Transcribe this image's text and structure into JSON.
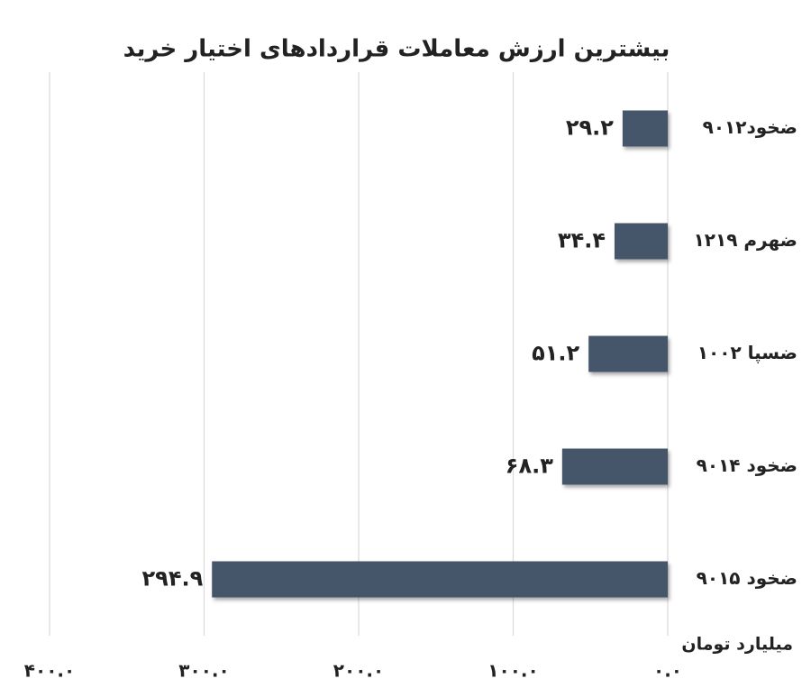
{
  "chart_data": {
    "type": "hbar",
    "title": "بیشترین ارزش معاملات قراردادهای اختیار خرید",
    "x_label": "میلیارد تومان",
    "categories": [
      "ضخود۹۰۱۲",
      "ضهرم ۱۲۱۹",
      "ضسپا ۱۰۰۲",
      "ضخود ۹۰۱۴",
      "ضخود ۹۰۱۵"
    ],
    "values": [
      29.2,
      34.4,
      51.2,
      68.3,
      294.9
    ],
    "value_labels": [
      "۲۹.۲",
      "۳۴.۴",
      "۵۱.۲",
      "۶۸.۳",
      "۲۹۴.۹"
    ],
    "color": "#44546a",
    "xlim": [
      0,
      400
    ],
    "xticks": [
      {
        "value": 0,
        "label": "۰.۰"
      },
      {
        "value": 100,
        "label": "۱۰۰.۰"
      },
      {
        "value": 200,
        "label": "۲۰۰.۰"
      },
      {
        "value": 300,
        "label": "۳۰۰.۰"
      },
      {
        "value": 400,
        "label": "۴۰۰.۰"
      }
    ],
    "x_reversed": true,
    "grid": true
  }
}
